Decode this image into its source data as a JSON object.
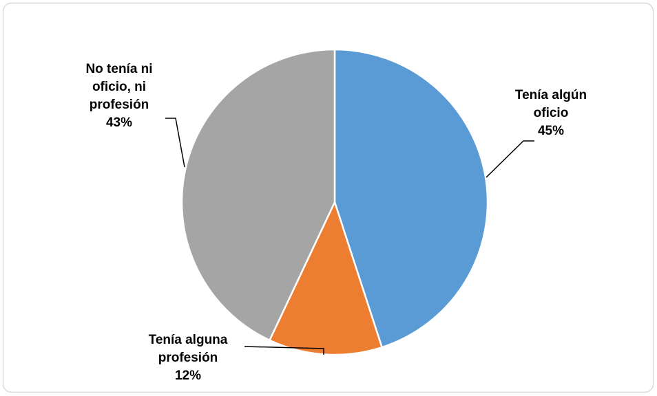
{
  "chart_data": {
    "type": "pie",
    "categories": [
      "Tenía algún oficio",
      "Tenía alguna profesión",
      "No tenía ni oficio, ni profesión"
    ],
    "values": [
      45,
      12,
      43
    ],
    "value_labels": [
      "45%",
      "12%",
      "43%"
    ],
    "colors": [
      "#5b9bd5",
      "#ed7d31",
      "#a5a5a5"
    ]
  }
}
